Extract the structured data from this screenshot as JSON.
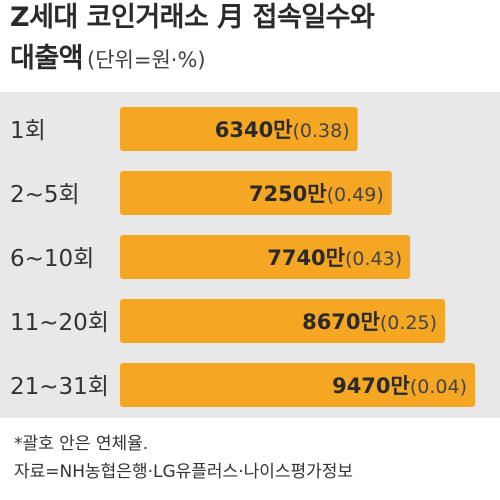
{
  "title": {
    "line1": "Z세대 코인거래소 月 접속일수와",
    "line2": "대출액",
    "unit": "(단위=원·%)"
  },
  "chart_data": {
    "type": "bar",
    "orientation": "horizontal",
    "categories": [
      "1회",
      "2~5회",
      "6~10회",
      "11~20회",
      "21~31회"
    ],
    "series": [
      {
        "values": [
          63400000,
          72500000,
          77400000,
          86700000,
          94700000
        ],
        "value_labels": [
          "6340만",
          "7250만",
          "7740만",
          "8670만",
          "9470만"
        ]
      },
      {
        "values": [
          0.38,
          0.49,
          0.43,
          0.25,
          0.04
        ],
        "value_labels": [
          "(0.38)",
          "(0.49)",
          "(0.43)",
          "(0.25)",
          "(0.04)"
        ]
      }
    ],
    "bar_color": "#f5a623",
    "background_color": "#e8e8e8",
    "grid": false,
    "legend": "none"
  },
  "footnotes": {
    "note": "*괄호 안은 연체율.",
    "source": "자료=NH농협은행·LG유플러스·나이스평가정보"
  }
}
